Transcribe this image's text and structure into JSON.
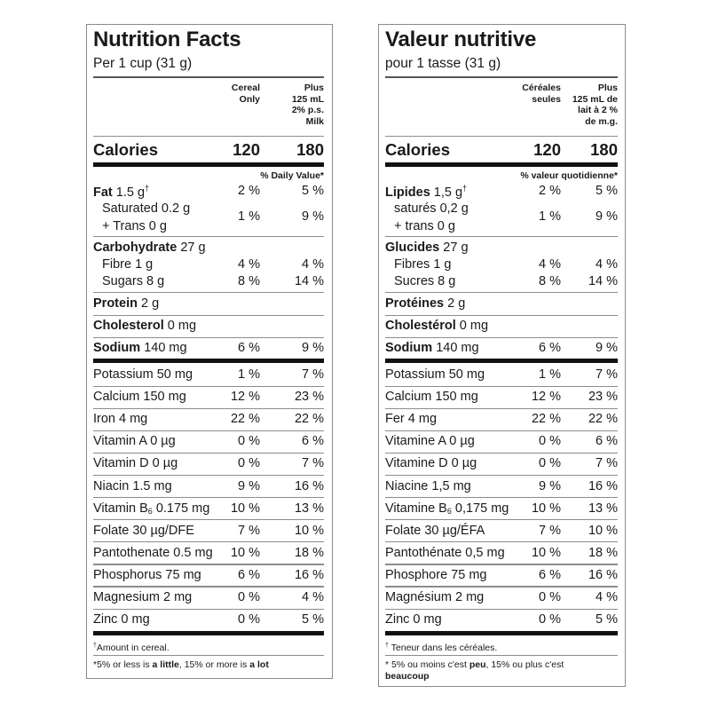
{
  "english": {
    "title": "Nutrition Facts",
    "serving": "Per 1 cup (31 g)",
    "columns": {
      "col1": [
        "Cereal",
        "Only"
      ],
      "col2": [
        "Plus",
        "125 mL",
        "2% p.s.",
        "Milk"
      ]
    },
    "calories": {
      "label": "Calories",
      "v1": "120",
      "v2": "180"
    },
    "dv_header": "% Daily Value*",
    "fat": {
      "label": "Fat",
      "amount": "1.5 g",
      "mark": "†",
      "v1": "2 %",
      "v2": "5 %"
    },
    "saturated": {
      "label": "Saturated 0.2 g",
      "v1": "1 %",
      "v2": "9 %"
    },
    "trans": {
      "label": "+ Trans 0 g"
    },
    "carbohydrate": {
      "label": "Carbohydrate",
      "amount": "27 g"
    },
    "fibre": {
      "label": "Fibre 1 g",
      "v1": "4 %",
      "v2": "4 %"
    },
    "sugars": {
      "label": "Sugars 8 g",
      "v1": "8 %",
      "v2": "14 %"
    },
    "protein": {
      "label": "Protein",
      "amount": "2 g"
    },
    "cholesterol": {
      "label": "Cholesterol",
      "amount": "0 mg"
    },
    "sodium": {
      "label": "Sodium",
      "amount": "140 mg",
      "v1": "6 %",
      "v2": "9 %"
    },
    "micros": [
      {
        "label": "Potassium 50 mg",
        "v1": "1 %",
        "v2": "7 %"
      },
      {
        "label": "Calcium 150 mg",
        "v1": "12 %",
        "v2": "23 %"
      },
      {
        "label": "Iron 4 mg",
        "v1": "22 %",
        "v2": "22 %"
      },
      {
        "label": "Vitamin A 0 µg",
        "v1": "0 %",
        "v2": "6 %"
      },
      {
        "label": "Vitamin D 0 µg",
        "v1": "0 %",
        "v2": "7 %"
      },
      {
        "label": "Niacin 1.5 mg",
        "v1": "9 %",
        "v2": "16 %"
      },
      {
        "label_pre": "Vitamin B",
        "label_sub": "6",
        "label_post": " 0.175 mg",
        "v1": "10 %",
        "v2": "13 %"
      },
      {
        "label": "Folate 30 µg/DFE",
        "v1": "7 %",
        "v2": "10 %"
      },
      {
        "label": "Pantothenate 0.5 mg",
        "v1": "10 %",
        "v2": "18 %"
      },
      {
        "label": "Phosphorus 75 mg",
        "v1": "6 %",
        "v2": "16 %"
      },
      {
        "label": "Magnesium 2 mg",
        "v1": "0 %",
        "v2": "4 %"
      },
      {
        "label": "Zinc 0 mg",
        "v1": "0 %",
        "v2": "5 %"
      }
    ],
    "footnote_dagger": {
      "mark": "†",
      "text": "Amount in cereal."
    },
    "footnote_star": {
      "mark": "*",
      "p1": "5% or less is ",
      "b1": "a little",
      "p2": ", 15% or more is ",
      "b2": "a lot"
    }
  },
  "french": {
    "title": "Valeur nutritive",
    "serving": "pour 1 tasse (31 g)",
    "columns": {
      "col1": [
        "Céréales",
        "seules"
      ],
      "col2": [
        "Plus",
        "125 mL de",
        "lait à 2 %",
        "de m.g."
      ]
    },
    "calories": {
      "label": "Calories",
      "v1": "120",
      "v2": "180"
    },
    "dv_header": "% valeur quotidienne*",
    "fat": {
      "label": "Lipides",
      "amount": "1,5 g",
      "mark": "†",
      "v1": "2 %",
      "v2": "5 %"
    },
    "saturated": {
      "label": "saturés 0,2 g",
      "v1": "1 %",
      "v2": "9 %"
    },
    "trans": {
      "label": "+ trans 0 g"
    },
    "carbohydrate": {
      "label": "Glucides",
      "amount": "27 g"
    },
    "fibre": {
      "label": "Fibres 1 g",
      "v1": "4 %",
      "v2": "4 %"
    },
    "sugars": {
      "label": "Sucres 8 g",
      "v1": "8 %",
      "v2": "14 %"
    },
    "protein": {
      "label": "Protéines",
      "amount": "2 g"
    },
    "cholesterol": {
      "label": "Cholestérol",
      "amount": "0 mg"
    },
    "sodium": {
      "label": "Sodium",
      "amount": "140 mg",
      "v1": "6 %",
      "v2": "9 %"
    },
    "micros": [
      {
        "label": "Potassium 50 mg",
        "v1": "1 %",
        "v2": "7 %"
      },
      {
        "label": "Calcium 150 mg",
        "v1": "12 %",
        "v2": "23 %"
      },
      {
        "label": "Fer 4 mg",
        "v1": "22 %",
        "v2": "22 %"
      },
      {
        "label": "Vitamine A 0 µg",
        "v1": "0 %",
        "v2": "6 %"
      },
      {
        "label": "Vitamine D 0 µg",
        "v1": "0 %",
        "v2": "7 %"
      },
      {
        "label": "Niacine 1,5 mg",
        "v1": "9 %",
        "v2": "16 %"
      },
      {
        "label_pre": "Vitamine B",
        "label_sub": "6",
        "label_post": " 0,175 mg",
        "v1": "10 %",
        "v2": "13 %"
      },
      {
        "label": "Folate 30 µg/ÉFA",
        "v1": "7 %",
        "v2": "10 %"
      },
      {
        "label": "Pantothénate 0,5 mg",
        "v1": "10 %",
        "v2": "18 %"
      },
      {
        "label": "Phosphore 75 mg",
        "v1": "6 %",
        "v2": "16 %"
      },
      {
        "label": "Magnésium 2 mg",
        "v1": "0 %",
        "v2": "4 %"
      },
      {
        "label": "Zinc 0 mg",
        "v1": "0 %",
        "v2": "5 %"
      }
    ],
    "footnote_dagger": {
      "mark": "†",
      "text": " Teneur dans les céréales."
    },
    "footnote_star": {
      "mark": "*",
      "p1": " 5% ou moins c'est ",
      "b1": "peu",
      "p2": ", 15% ou plus c'est ",
      "b2": "beaucoup"
    }
  }
}
